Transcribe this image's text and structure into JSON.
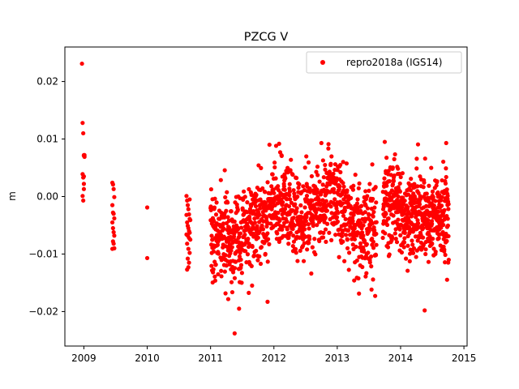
{
  "chart_data": {
    "type": "scatter",
    "title": "PZCG V",
    "xlabel": "",
    "ylabel": "m",
    "xlim": [
      2008.7,
      2015.05
    ],
    "ylim": [
      -0.026,
      0.026
    ],
    "x_ticks": [
      2009,
      2010,
      2011,
      2012,
      2013,
      2014,
      2015
    ],
    "x_tick_labels": [
      "2009",
      "2010",
      "2011",
      "2012",
      "2013",
      "2014",
      "2015"
    ],
    "y_ticks": [
      -0.02,
      -0.01,
      0.0,
      0.01,
      0.02
    ],
    "y_tick_labels": [
      "−0.02",
      "−0.01",
      "0.00",
      "0.01",
      "0.02"
    ],
    "legend_position": "top-right",
    "grid": false,
    "series": [
      {
        "name": "repro2018a (IGS14)",
        "color": "#ff0000",
        "marker": "circle",
        "x": [
          2008.97,
          2008.98,
          2008.99,
          2009.0,
          2009.0,
          2009.01,
          2008.98,
          2008.99,
          2009.0,
          2008.98,
          2008.99,
          2009.0,
          2009.0,
          2009.01,
          2009.45,
          2009.46,
          2009.47,
          2009.48,
          2009.45,
          2009.46,
          2009.47,
          2009.48,
          2009.45,
          2009.46,
          2009.47,
          2009.48,
          2009.46,
          2009.47,
          2009.45,
          2009.48,
          2010.0,
          2010.0,
          2010.62,
          2010.63,
          2010.64,
          2010.65,
          2010.66,
          2010.67,
          2010.68,
          2010.63,
          2010.64,
          2010.65,
          2010.66,
          2010.67,
          2010.62,
          2010.64,
          2010.66,
          2010.68,
          2010.63,
          2010.65,
          2010.67,
          2010.64,
          2010.66,
          2010.65,
          2010.63,
          2010.67,
          2010.62
        ],
        "y": [
          0.0231,
          0.0128,
          0.011,
          0.0072,
          0.0071,
          0.0069,
          0.0039,
          0.0033,
          0.0013,
          0.0001,
          -0.0007,
          0.0035,
          0.0022,
          0.0072,
          0.0024,
          0.0021,
          0.0013,
          -0.0001,
          -0.0015,
          -0.0028,
          -0.003,
          -0.0038,
          -0.0045,
          -0.0055,
          -0.0062,
          -0.0068,
          -0.0078,
          -0.0082,
          -0.0091,
          -0.009,
          -0.0019,
          -0.0107,
          0.0001,
          -0.0007,
          -0.0015,
          -0.0022,
          -0.0031,
          -0.0039,
          -0.0041,
          -0.0045,
          -0.0051,
          -0.0055,
          -0.006,
          -0.0063,
          -0.0066,
          -0.0068,
          -0.0072,
          -0.0075,
          -0.0082,
          -0.0091,
          -0.0098,
          -0.0108,
          -0.0115,
          -0.0123,
          -0.0127,
          -0.0005,
          -0.0032
        ]
      }
    ]
  },
  "dense_segments": [
    {
      "start": 2011.0,
      "end": 2013.62,
      "count": 1100,
      "seed": 7
    },
    {
      "start": 2013.72,
      "end": 2014.76,
      "count": 520,
      "seed": 13
    }
  ]
}
